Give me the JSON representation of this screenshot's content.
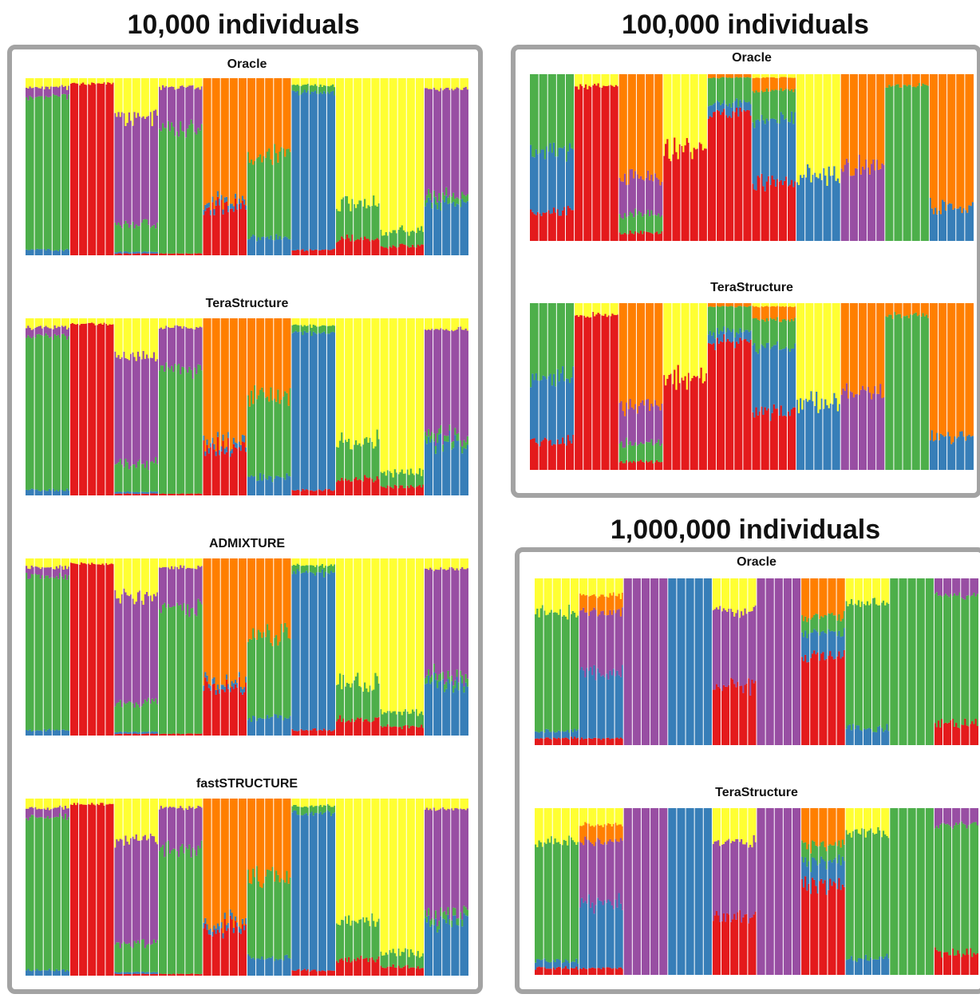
{
  "colors": {
    "red": "#e41a1c",
    "green": "#4daf4a",
    "blue": "#377eb8",
    "purple": "#984ea3",
    "orange": "#ff7f00",
    "yellow": "#ffff33",
    "frame": "#a3a3a3"
  },
  "groups": {
    "g10k": {
      "title": "10,000 individuals"
    },
    "g100k": {
      "title": "100,000 individuals"
    },
    "g1m": {
      "title": "1,000,000 individuals"
    }
  },
  "chart_data": [
    {
      "type": "bar",
      "stacked": true,
      "group": "10,000 individuals",
      "panels": [
        "Oracle",
        "TeraStructure",
        "ADMIXTURE",
        "fastSTRUCTURE"
      ],
      "ylim": [
        0,
        1
      ],
      "component_order_bottom_to_top": [
        "red",
        "blue",
        "green",
        "purple",
        "orange",
        "yellow"
      ],
      "populations": [
        {
          "red": 0.0,
          "blue": 0.03,
          "green": 0.87,
          "purple": 0.05,
          "orange": 0.0,
          "yellow": 0.05
        },
        {
          "red": 0.97,
          "blue": 0.0,
          "green": 0.0,
          "purple": 0.0,
          "orange": 0.0,
          "yellow": 0.03
        },
        {
          "red": 0.01,
          "blue": 0.01,
          "green": 0.16,
          "purple": 0.6,
          "orange": 0.0,
          "yellow": 0.22
        },
        {
          "red": 0.01,
          "blue": 0.0,
          "green": 0.71,
          "purple": 0.23,
          "orange": 0.0,
          "yellow": 0.05
        },
        {
          "red": 0.27,
          "blue": 0.03,
          "green": 0.0,
          "purple": 0.0,
          "orange": 0.7,
          "yellow": 0.0
        },
        {
          "red": 0.0,
          "blue": 0.1,
          "green": 0.46,
          "purple": 0.0,
          "orange": 0.44,
          "yellow": 0.0
        },
        {
          "red": 0.03,
          "blue": 0.89,
          "green": 0.04,
          "purple": 0.0,
          "orange": 0.0,
          "yellow": 0.04
        },
        {
          "red": 0.09,
          "blue": 0.0,
          "green": 0.21,
          "purple": 0.0,
          "orange": 0.0,
          "yellow": 0.7
        },
        {
          "red": 0.05,
          "blue": 0.0,
          "green": 0.08,
          "purple": 0.0,
          "orange": 0.0,
          "yellow": 0.87
        },
        {
          "red": 0.0,
          "blue": 0.3,
          "green": 0.04,
          "purple": 0.6,
          "orange": 0.0,
          "yellow": 0.06
        }
      ]
    },
    {
      "type": "bar",
      "stacked": true,
      "group": "100,000 individuals",
      "panels": [
        "Oracle",
        "TeraStructure"
      ],
      "ylim": [
        0,
        1
      ],
      "component_order_bottom_to_top": [
        "red",
        "blue",
        "green",
        "purple",
        "orange",
        "yellow"
      ],
      "populations": [
        {
          "red": 0.18,
          "blue": 0.37,
          "green": 0.45,
          "purple": 0.0,
          "orange": 0.0,
          "yellow": 0.0
        },
        {
          "red": 0.93,
          "blue": 0.0,
          "green": 0.0,
          "purple": 0.0,
          "orange": 0.0,
          "yellow": 0.07
        },
        {
          "red": 0.05,
          "blue": 0.0,
          "green": 0.11,
          "purple": 0.22,
          "orange": 0.62,
          "yellow": 0.0
        },
        {
          "red": 0.55,
          "blue": 0.0,
          "green": 0.0,
          "purple": 0.0,
          "orange": 0.0,
          "yellow": 0.45
        },
        {
          "red": 0.77,
          "blue": 0.06,
          "green": 0.15,
          "purple": 0.0,
          "orange": 0.02,
          "yellow": 0.0
        },
        {
          "red": 0.35,
          "blue": 0.38,
          "green": 0.17,
          "purple": 0.0,
          "orange": 0.08,
          "yellow": 0.02
        },
        {
          "red": 0.0,
          "blue": 0.4,
          "green": 0.0,
          "purple": 0.0,
          "orange": 0.0,
          "yellow": 0.6
        },
        {
          "red": 0.0,
          "blue": 0.0,
          "green": 0.0,
          "purple": 0.45,
          "orange": 0.55,
          "yellow": 0.0
        },
        {
          "red": 0.0,
          "blue": 0.0,
          "green": 0.93,
          "purple": 0.0,
          "orange": 0.07,
          "yellow": 0.0
        },
        {
          "red": 0.0,
          "blue": 0.2,
          "green": 0.0,
          "purple": 0.0,
          "orange": 0.8,
          "yellow": 0.0
        }
      ]
    },
    {
      "type": "bar",
      "stacked": true,
      "group": "1,000,000 individuals",
      "panels": [
        "Oracle",
        "TeraStructure"
      ],
      "ylim": [
        0,
        1
      ],
      "component_order_bottom_to_top": [
        "red",
        "blue",
        "green",
        "purple",
        "orange",
        "yellow"
      ],
      "populations": [
        {
          "red": 0.04,
          "blue": 0.04,
          "green": 0.72,
          "purple": 0.0,
          "orange": 0.0,
          "yellow": 0.2
        },
        {
          "red": 0.04,
          "blue": 0.4,
          "green": 0.0,
          "purple": 0.36,
          "orange": 0.1,
          "yellow": 0.1
        },
        {
          "red": 0.0,
          "blue": 0.0,
          "green": 0.0,
          "purple": 1.0,
          "orange": 0.0,
          "yellow": 0.0
        },
        {
          "red": 0.0,
          "blue": 1.0,
          "green": 0.0,
          "purple": 0.0,
          "orange": 0.0,
          "yellow": 0.0
        },
        {
          "red": 0.35,
          "blue": 0.0,
          "green": 0.0,
          "purple": 0.45,
          "orange": 0.0,
          "yellow": 0.2
        },
        {
          "red": 0.0,
          "blue": 0.0,
          "green": 0.0,
          "purple": 1.0,
          "orange": 0.0,
          "yellow": 0.0
        },
        {
          "red": 0.54,
          "blue": 0.14,
          "green": 0.1,
          "purple": 0.0,
          "orange": 0.22,
          "yellow": 0.0
        },
        {
          "red": 0.0,
          "blue": 0.1,
          "green": 0.75,
          "purple": 0.0,
          "orange": 0.0,
          "yellow": 0.15
        },
        {
          "red": 0.0,
          "blue": 0.0,
          "green": 1.0,
          "purple": 0.0,
          "orange": 0.0,
          "yellow": 0.0
        },
        {
          "red": 0.13,
          "blue": 0.0,
          "green": 0.77,
          "purple": 0.1,
          "orange": 0.0,
          "yellow": 0.0
        }
      ]
    }
  ]
}
